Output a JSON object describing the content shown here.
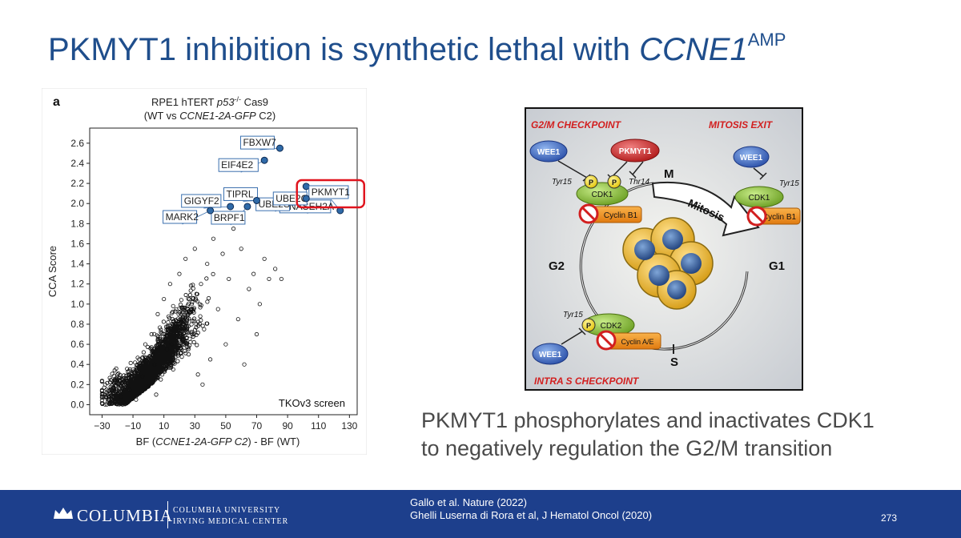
{
  "slide": {
    "title_main": "PKMYT1 inhibition is synthetic lethal with ",
    "title_gene": "CCNE1",
    "title_sup": "AMP",
    "caption_line1": "PKMYT1 phosphorylates and inactivates CDK1",
    "caption_line2": "to negatively regulation the G2/M transition"
  },
  "chart_data": {
    "type": "scatter",
    "panel_label": "a",
    "title_line1_a": "RPE1 hTERT ",
    "title_line1_b": "p53",
    "title_line1_sup": "-/-",
    "title_line1_c": " Cas9",
    "title_line2_a": "(WT vs ",
    "title_line2_b": "CCNE1-2A-GFP",
    "title_line2_c": " C2)",
    "xlabel_a": "BF (",
    "xlabel_b": "CCNE1-2A-GFP C2",
    "xlabel_c": ") - BF (WT)",
    "ylabel": "CCA Score",
    "annotation": "TKOv3 screen",
    "xlim": [
      -38,
      135
    ],
    "ylim": [
      -0.1,
      2.75
    ],
    "xticks": [
      -30,
      -10,
      10,
      30,
      50,
      70,
      90,
      110,
      130
    ],
    "xtick_labels": [
      "−30",
      "−10",
      "10",
      "30",
      "50",
      "70",
      "90",
      "110",
      "130"
    ],
    "yticks": [
      0.0,
      0.2,
      0.4,
      0.6,
      0.8,
      1.0,
      1.2,
      1.4,
      1.6,
      1.8,
      2.0,
      2.2,
      2.4,
      2.6
    ],
    "ytick_labels": [
      "0.0",
      "0.2",
      "0.4",
      "0.6",
      "0.8",
      "1.0",
      "1.2",
      "1.4",
      "1.6",
      "1.8",
      "2.0",
      "2.2",
      "2.4",
      "2.6"
    ],
    "series": [
      {
        "values": [
          {
            "x": -28,
            "y": 0.2
          },
          {
            "x": -26,
            "y": 0.05
          },
          {
            "x": -22,
            "y": 0.12
          },
          {
            "x": -20,
            "y": 0.3
          },
          {
            "x": -18,
            "y": 0.08
          },
          {
            "x": -15,
            "y": 0.22
          },
          {
            "x": -12,
            "y": 0.15
          },
          {
            "x": -10,
            "y": 0.35
          },
          {
            "x": -8,
            "y": 0.05
          },
          {
            "x": -6,
            "y": 0.45
          },
          {
            "x": -4,
            "y": 0.28
          },
          {
            "x": -2,
            "y": 0.6
          },
          {
            "x": 0,
            "y": 0.18
          },
          {
            "x": 2,
            "y": 0.7
          },
          {
            "x": 4,
            "y": 0.4
          },
          {
            "x": 6,
            "y": 0.9
          },
          {
            "x": 8,
            "y": 0.25
          },
          {
            "x": 10,
            "y": 1.05
          },
          {
            "x": 12,
            "y": 0.55
          },
          {
            "x": 14,
            "y": 1.2
          },
          {
            "x": 16,
            "y": 0.35
          },
          {
            "x": 18,
            "y": 0.8
          },
          {
            "x": 20,
            "y": 1.3
          },
          {
            "x": 22,
            "y": 0.65
          },
          {
            "x": 24,
            "y": 1.45
          },
          {
            "x": 26,
            "y": 0.5
          },
          {
            "x": 28,
            "y": 1.0
          },
          {
            "x": 30,
            "y": 1.55
          },
          {
            "x": 32,
            "y": 0.3
          },
          {
            "x": 34,
            "y": 1.2
          },
          {
            "x": 36,
            "y": 0.75
          },
          {
            "x": 38,
            "y": 1.4
          },
          {
            "x": 40,
            "y": 0.45
          },
          {
            "x": 42,
            "y": 1.65
          },
          {
            "x": 45,
            "y": 0.95
          },
          {
            "x": 48,
            "y": 1.5
          },
          {
            "x": 50,
            "y": 0.6
          },
          {
            "x": 52,
            "y": 1.25
          },
          {
            "x": 55,
            "y": 1.75
          },
          {
            "x": 58,
            "y": 0.85
          },
          {
            "x": 60,
            "y": 1.55
          },
          {
            "x": 62,
            "y": 0.4
          },
          {
            "x": 65,
            "y": 1.15
          },
          {
            "x": 68,
            "y": 1.3
          },
          {
            "x": 70,
            "y": 0.7
          },
          {
            "x": 72,
            "y": 1.0
          },
          {
            "x": 75,
            "y": 1.45
          },
          {
            "x": 78,
            "y": 1.25
          },
          {
            "x": 82,
            "y": 1.35
          },
          {
            "x": 86,
            "y": 1.25
          },
          {
            "x": 5,
            "y": 0.1
          },
          {
            "x": -16,
            "y": 0.02
          },
          {
            "x": 3,
            "y": 0.5
          },
          {
            "x": 15,
            "y": 0.6
          },
          {
            "x": 25,
            "y": 0.85
          },
          {
            "x": 35,
            "y": 0.2
          }
        ]
      }
    ],
    "highlighted_genes": [
      {
        "label": "FBXW7",
        "x": 85,
        "y": 2.55
      },
      {
        "label": "EIF4E2",
        "x": 75,
        "y": 2.43
      },
      {
        "label": "RNASEH2A",
        "x": 102,
        "y": 2.17
      },
      {
        "label": "UBE2S",
        "x": 97,
        "y": 2.08
      },
      {
        "label": "TIPRL",
        "x": 70,
        "y": 2.03
      },
      {
        "label": "PKMYT1",
        "x": 124,
        "y": 1.93
      },
      {
        "label": "UBE2G",
        "x": 102,
        "y": 2.05
      },
      {
        "label": "GIGYF2",
        "x": 53,
        "y": 1.97
      },
      {
        "label": "BRPF1",
        "x": 64,
        "y": 1.97
      },
      {
        "label": "MARK2",
        "x": 40,
        "y": 1.93
      }
    ]
  },
  "diagram": {
    "g2m_checkpoint": "G2/M CHECKPOINT",
    "mitosis_exit": "MITOSIS EXIT",
    "intra_s_checkpoint": "INTRA S CHECKPOINT",
    "wee1": "WEE1",
    "pkmyt1": "PKMYT1",
    "tyr15": "Tyr15",
    "thr14": "Thr14",
    "p": "P",
    "cdk1": "CDK1",
    "cdk2": "CDK2",
    "cyclin_b1": "Cyclin B1",
    "cyclin_ae": "Cyclin A/E",
    "mitosis": "Mitosis",
    "phase_m": "M",
    "phase_g1": "G1",
    "phase_g2": "G2",
    "phase_s": "S"
  },
  "footer": {
    "brand": "COLUMBIA",
    "unit_line1": "COLUMBIA UNIVERSITY",
    "unit_line2": "IRVING MEDICAL CENTER",
    "ref1": "Gallo et al. Nature (2022)",
    "ref2": "Ghelli Luserna di Rora et al, J Hematol Oncol (2020)",
    "page_number": "273"
  }
}
